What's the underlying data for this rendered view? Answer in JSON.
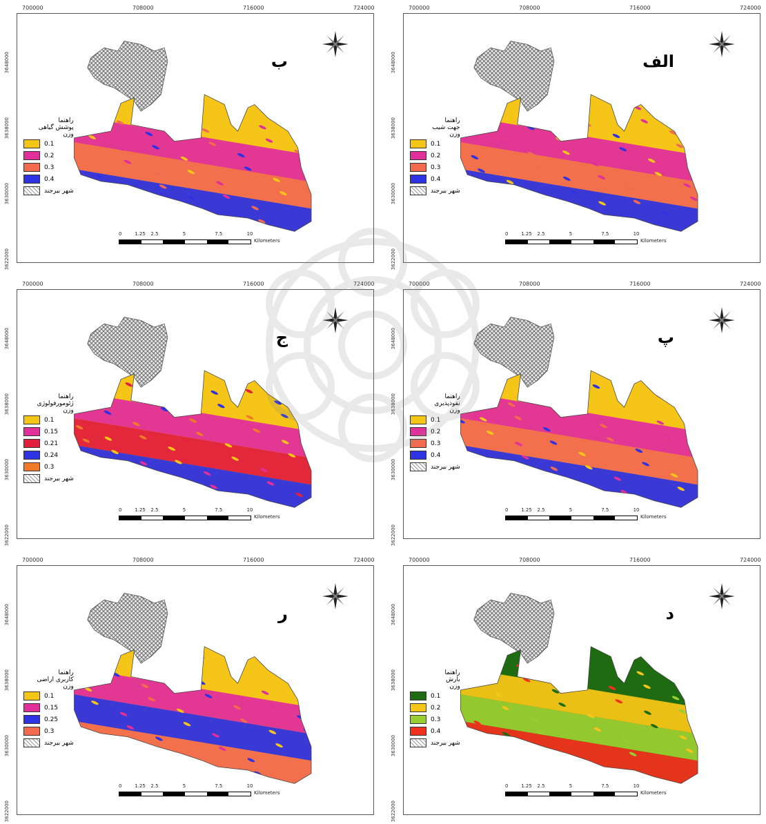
{
  "x_ticks": [
    "700000",
    "708000",
    "716000",
    "724000"
  ],
  "y_ticks": [
    "3648000",
    "3638000",
    "3630000",
    "3622000"
  ],
  "scale": {
    "labels": [
      "0",
      "1.25",
      "2.5",
      "5",
      "7.5",
      "10"
    ],
    "unit": "Kilometers"
  },
  "legend_header": "راهنما",
  "weight_label": "وزن",
  "city_label": "شهر بیرجند",
  "panels": [
    {
      "id": "alef",
      "label": "الف",
      "title": "جهت شیب",
      "classes": [
        {
          "v": "0.1",
          "c": "#f5c518"
        },
        {
          "v": "0.2",
          "c": "#e0309a"
        },
        {
          "v": "0.3",
          "c": "#f26b4f"
        },
        {
          "v": "0.4",
          "c": "#2f32e0"
        }
      ]
    },
    {
      "id": "be",
      "label": "ب",
      "title": "پوشش گیاهی",
      "classes": [
        {
          "v": "0.1",
          "c": "#f5c518"
        },
        {
          "v": "0.2",
          "c": "#e0309a"
        },
        {
          "v": "0.3",
          "c": "#f26b4f"
        },
        {
          "v": "0.4",
          "c": "#2f32e0"
        }
      ]
    },
    {
      "id": "pe",
      "label": "پ",
      "title": "نفوذپذیری",
      "classes": [
        {
          "v": "0.1",
          "c": "#f5c518"
        },
        {
          "v": "0.2",
          "c": "#e0309a"
        },
        {
          "v": "0.3",
          "c": "#f26b4f"
        },
        {
          "v": "0.4",
          "c": "#2f32e0"
        }
      ]
    },
    {
      "id": "jim",
      "label": "ج",
      "title": "ژئومورفولوژی",
      "classes": [
        {
          "v": "0.1",
          "c": "#f5c518"
        },
        {
          "v": "0.15",
          "c": "#e0309a"
        },
        {
          "v": "0.21",
          "c": "#e0203c"
        },
        {
          "v": "0.24",
          "c": "#2f32e0"
        },
        {
          "v": "0.3",
          "c": "#f07a2a"
        }
      ]
    },
    {
      "id": "dal",
      "label": "د",
      "title": "بارش",
      "classes": [
        {
          "v": "0.1",
          "c": "#1e6b12"
        },
        {
          "v": "0.2",
          "c": "#f5c518"
        },
        {
          "v": "0.3",
          "c": "#9acd32"
        },
        {
          "v": "0.4",
          "c": "#f0311e"
        }
      ]
    },
    {
      "id": "re",
      "label": "ر",
      "title": "کاربری اراضی",
      "classes": [
        {
          "v": "0.1",
          "c": "#f5c518"
        },
        {
          "v": "0.15",
          "c": "#e0309a"
        },
        {
          "v": "0.25",
          "c": "#2f32e0"
        },
        {
          "v": "0.3",
          "c": "#f26b4f"
        }
      ]
    }
  ]
}
